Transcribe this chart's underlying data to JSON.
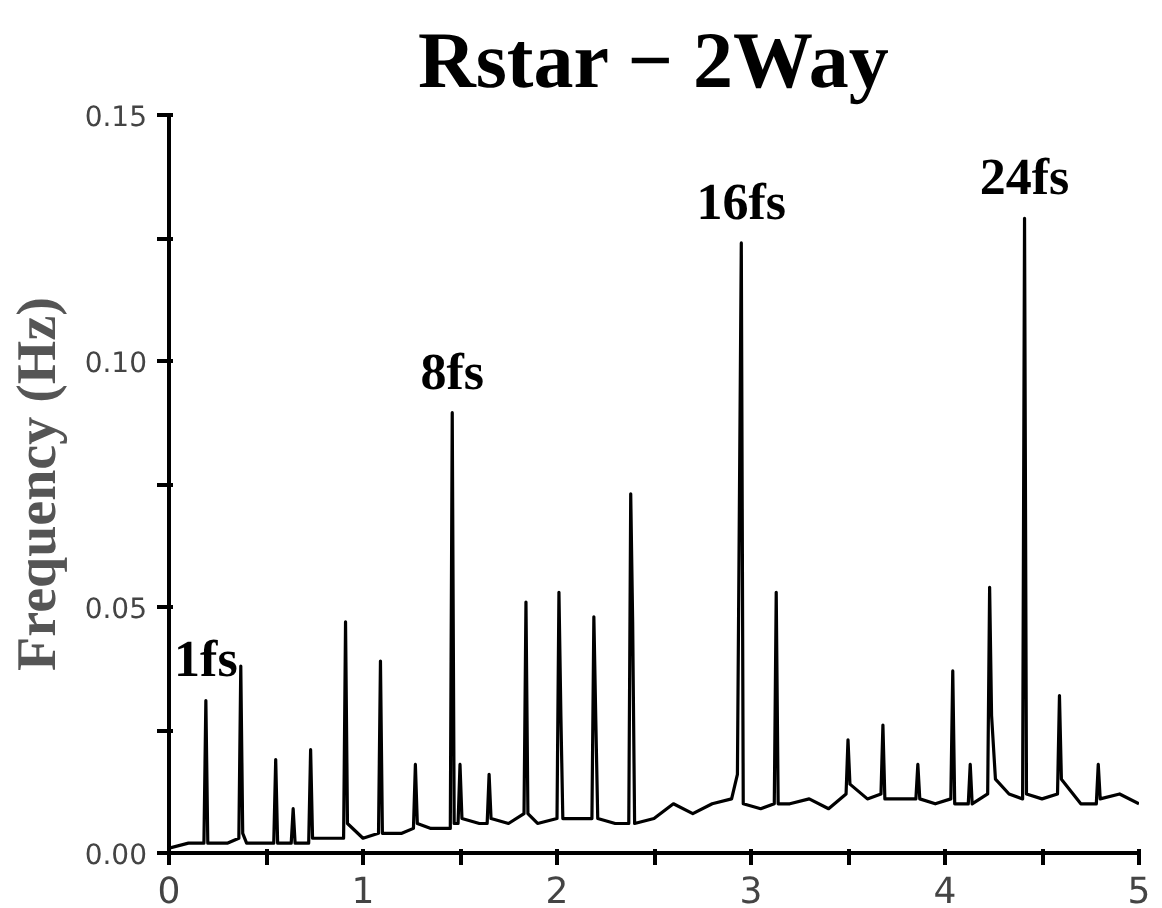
{
  "chart_data": {
    "type": "line",
    "title": "Rstar − 2Way",
    "ylabel": "Frequency (Hz)",
    "x": [
      0.0,
      0.1,
      0.18,
      0.19,
      0.2,
      0.3,
      0.36,
      0.37,
      0.38,
      0.4,
      0.5,
      0.54,
      0.55,
      0.56,
      0.6,
      0.63,
      0.64,
      0.65,
      0.72,
      0.73,
      0.74,
      0.8,
      0.9,
      0.91,
      0.92,
      1.0,
      1.08,
      1.09,
      1.1,
      1.2,
      1.26,
      1.27,
      1.28,
      1.35,
      1.45,
      1.46,
      1.47,
      1.49,
      1.5,
      1.51,
      1.6,
      1.64,
      1.65,
      1.66,
      1.75,
      1.83,
      1.84,
      1.85,
      1.9,
      2.0,
      2.01,
      2.02,
      2.03,
      2.1,
      2.18,
      2.19,
      2.2,
      2.21,
      2.3,
      2.37,
      2.38,
      2.39,
      2.4,
      2.5,
      2.6,
      2.7,
      2.8,
      2.9,
      2.93,
      2.95,
      2.96,
      3.05,
      3.12,
      3.13,
      3.14,
      3.2,
      3.3,
      3.4,
      3.49,
      3.5,
      3.51,
      3.6,
      3.67,
      3.68,
      3.69,
      3.77,
      3.85,
      3.86,
      3.87,
      3.95,
      4.03,
      4.04,
      4.05,
      4.12,
      4.13,
      4.14,
      4.22,
      4.23,
      4.24,
      4.26,
      4.33,
      4.4,
      4.41,
      4.42,
      4.5,
      4.58,
      4.59,
      4.6,
      4.7,
      4.78,
      4.79,
      4.8,
      4.9,
      5.0
    ],
    "series": [
      {
        "color": "#000000",
        "values": [
          0.001,
          0.002,
          0.002,
          0.031,
          0.002,
          0.002,
          0.003,
          0.038,
          0.004,
          0.002,
          0.002,
          0.002,
          0.019,
          0.002,
          0.002,
          0.002,
          0.009,
          0.002,
          0.002,
          0.021,
          0.003,
          0.003,
          0.003,
          0.047,
          0.006,
          0.003,
          0.004,
          0.039,
          0.004,
          0.004,
          0.005,
          0.018,
          0.006,
          0.005,
          0.005,
          0.0895,
          0.006,
          0.006,
          0.018,
          0.007,
          0.006,
          0.006,
          0.016,
          0.007,
          0.006,
          0.008,
          0.051,
          0.008,
          0.006,
          0.007,
          0.053,
          0.028,
          0.007,
          0.007,
          0.007,
          0.048,
          0.027,
          0.007,
          0.006,
          0.006,
          0.073,
          0.047,
          0.006,
          0.007,
          0.01,
          0.008,
          0.01,
          0.011,
          0.016,
          0.124,
          0.01,
          0.009,
          0.01,
          0.053,
          0.01,
          0.01,
          0.011,
          0.009,
          0.012,
          0.023,
          0.014,
          0.011,
          0.012,
          0.026,
          0.011,
          0.011,
          0.011,
          0.018,
          0.011,
          0.01,
          0.011,
          0.037,
          0.01,
          0.01,
          0.018,
          0.01,
          0.012,
          0.054,
          0.028,
          0.015,
          0.012,
          0.011,
          0.129,
          0.012,
          0.011,
          0.012,
          0.032,
          0.015,
          0.01,
          0.01,
          0.018,
          0.011,
          0.012,
          0.01
        ]
      }
    ],
    "xlim": [
      0,
      5
    ],
    "xticks": [
      0,
      {
        "value": 0.5,
        "label": null
      },
      1,
      {
        "value": 1.5,
        "label": null
      },
      2,
      {
        "value": 2.5,
        "label": null
      },
      3,
      {
        "value": 3.5,
        "label": null
      },
      4,
      {
        "value": 4.5,
        "label": null
      },
      5
    ],
    "ylim": [
      0,
      0.15
    ],
    "yticks": [
      {
        "value": 0,
        "label": "0.00"
      },
      {
        "value": 0.025,
        "label": null
      },
      {
        "value": 0.05,
        "label": "0.05"
      },
      {
        "value": 0.075,
        "label": null
      },
      {
        "value": 0.1,
        "label": "0.10"
      },
      {
        "value": 0.125,
        "label": null
      },
      {
        "value": 0.15,
        "label": "0.15"
      }
    ],
    "annotations": [
      {
        "text": "1fs",
        "x": 0.19,
        "y": 0.031
      },
      {
        "text": "8fs",
        "x": 1.46,
        "y": 0.0895
      },
      {
        "text": "16fs",
        "x": 2.95,
        "y": 0.124
      },
      {
        "text": "24fs",
        "x": 4.41,
        "y": 0.129
      }
    ],
    "grid": false,
    "marker": "none",
    "line_style": "solid"
  }
}
